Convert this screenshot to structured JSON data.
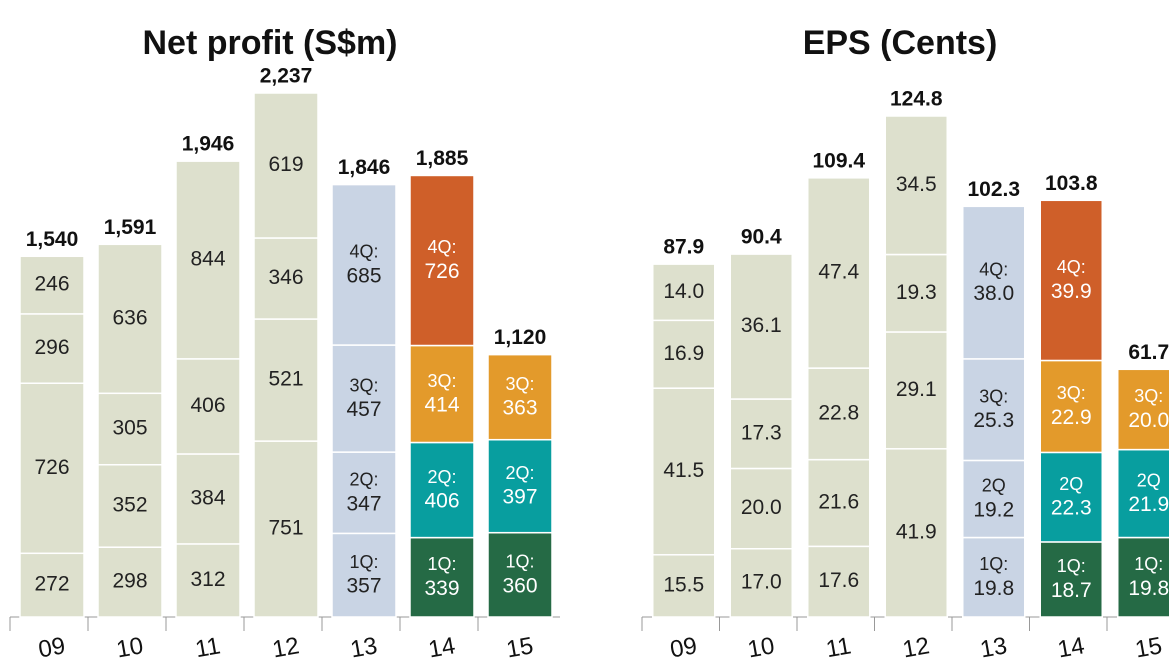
{
  "chart_data": [
    {
      "type": "stacked_bar",
      "title": "Net profit (S$m)",
      "categories": [
        "09",
        "10",
        "11",
        "12",
        "13",
        "14",
        "15"
      ],
      "totals": [
        1540,
        1591,
        1946,
        2237,
        1846,
        1885,
        1120
      ],
      "total_labels": [
        "1,540",
        "1,591",
        "1,946",
        "2,237",
        "1,846",
        "1,885",
        "1,120"
      ],
      "label_colors": [
        "#222",
        "#222",
        "#222",
        "#222",
        "#222",
        "#fff",
        "#fff"
      ],
      "series": [
        {
          "values": [
            272,
            298,
            312,
            751,
            357,
            339,
            360
          ],
          "tags": [
            null,
            null,
            null,
            null,
            "1Q:",
            "1Q:",
            "1Q:"
          ],
          "colors": [
            "#dde0cd",
            "#dde0cd",
            "#dde0cd",
            "#dde0cd",
            "#c9d4e4",
            "#256a45",
            "#256a45"
          ]
        },
        {
          "values": [
            726,
            352,
            384,
            521,
            347,
            406,
            397
          ],
          "tags": [
            null,
            null,
            null,
            null,
            "2Q:",
            "2Q:",
            "2Q:"
          ],
          "colors": [
            "#dde0cd",
            "#dde0cd",
            "#dde0cd",
            "#dde0cd",
            "#c9d4e4",
            "#089e9f",
            "#089e9f"
          ]
        },
        {
          "values": [
            296,
            305,
            406,
            346,
            457,
            414,
            363
          ],
          "tags": [
            null,
            null,
            null,
            null,
            "3Q:",
            "3Q:",
            "3Q:"
          ],
          "colors": [
            "#dde0cd",
            "#dde0cd",
            "#dde0cd",
            "#dde0cd",
            "#c9d4e4",
            "#e39a2b",
            "#e39a2b"
          ]
        },
        {
          "values": [
            246,
            636,
            844,
            619,
            685,
            726,
            null
          ],
          "tags": [
            null,
            null,
            null,
            null,
            "4Q:",
            "4Q:",
            null
          ],
          "colors": [
            "#dde0cd",
            "#dde0cd",
            "#dde0cd",
            "#dde0cd",
            "#c9d4e4",
            "#cf5f29",
            null
          ]
        }
      ]
    },
    {
      "type": "stacked_bar",
      "title": "EPS (Cents)",
      "categories": [
        "09",
        "10",
        "11",
        "12",
        "13",
        "14",
        "15"
      ],
      "totals": [
        87.9,
        90.4,
        109.4,
        124.8,
        102.3,
        103.8,
        61.7
      ],
      "label_colors": [
        "#222",
        "#222",
        "#222",
        "#222",
        "#222",
        "#fff",
        "#fff"
      ],
      "series": [
        {
          "values": [
            15.5,
            17.0,
            17.6,
            41.9,
            19.8,
            18.7,
            19.8
          ],
          "value_labels": [
            "15.5",
            "17.0",
            "17.6",
            "41.9",
            "19.8",
            "18.7",
            "19.8"
          ],
          "tags": [
            null,
            null,
            null,
            null,
            "1Q:",
            "1Q:",
            "1Q:"
          ],
          "colors": [
            "#dde0cd",
            "#dde0cd",
            "#dde0cd",
            "#dde0cd",
            "#c9d4e4",
            "#256a45",
            "#256a45"
          ]
        },
        {
          "values": [
            41.5,
            20.0,
            21.6,
            29.1,
            19.2,
            22.3,
            21.9
          ],
          "value_labels": [
            "41.5",
            "20.0",
            "21.6",
            "29.1",
            "19.2",
            "22.3",
            "21.9"
          ],
          "tags": [
            null,
            null,
            null,
            null,
            "2Q",
            "2Q",
            "2Q"
          ],
          "colors": [
            "#dde0cd",
            "#dde0cd",
            "#dde0cd",
            "#dde0cd",
            "#c9d4e4",
            "#089e9f",
            "#089e9f"
          ]
        },
        {
          "values": [
            16.9,
            17.3,
            22.8,
            19.3,
            25.3,
            22.9,
            20.0
          ],
          "value_labels": [
            "16.9",
            "17.3",
            "22.8",
            "19.3",
            "25.3",
            "22.9",
            "20.0"
          ],
          "tags": [
            null,
            null,
            null,
            null,
            "3Q:",
            "3Q:",
            "3Q:"
          ],
          "colors": [
            "#dde0cd",
            "#dde0cd",
            "#dde0cd",
            "#dde0cd",
            "#c9d4e4",
            "#e39a2b",
            "#e39a2b"
          ]
        },
        {
          "values": [
            14.0,
            36.1,
            47.4,
            34.5,
            38.0,
            39.9,
            null
          ],
          "value_labels": [
            "14.0",
            "36.1",
            "47.4",
            "34.5",
            "38.0",
            "39.9",
            null
          ],
          "tags": [
            null,
            null,
            null,
            null,
            "4Q:",
            "4Q:",
            null
          ],
          "colors": [
            "#dde0cd",
            "#dde0cd",
            "#dde0cd",
            "#dde0cd",
            "#c9d4e4",
            "#cf5f29",
            null
          ]
        }
      ]
    }
  ]
}
